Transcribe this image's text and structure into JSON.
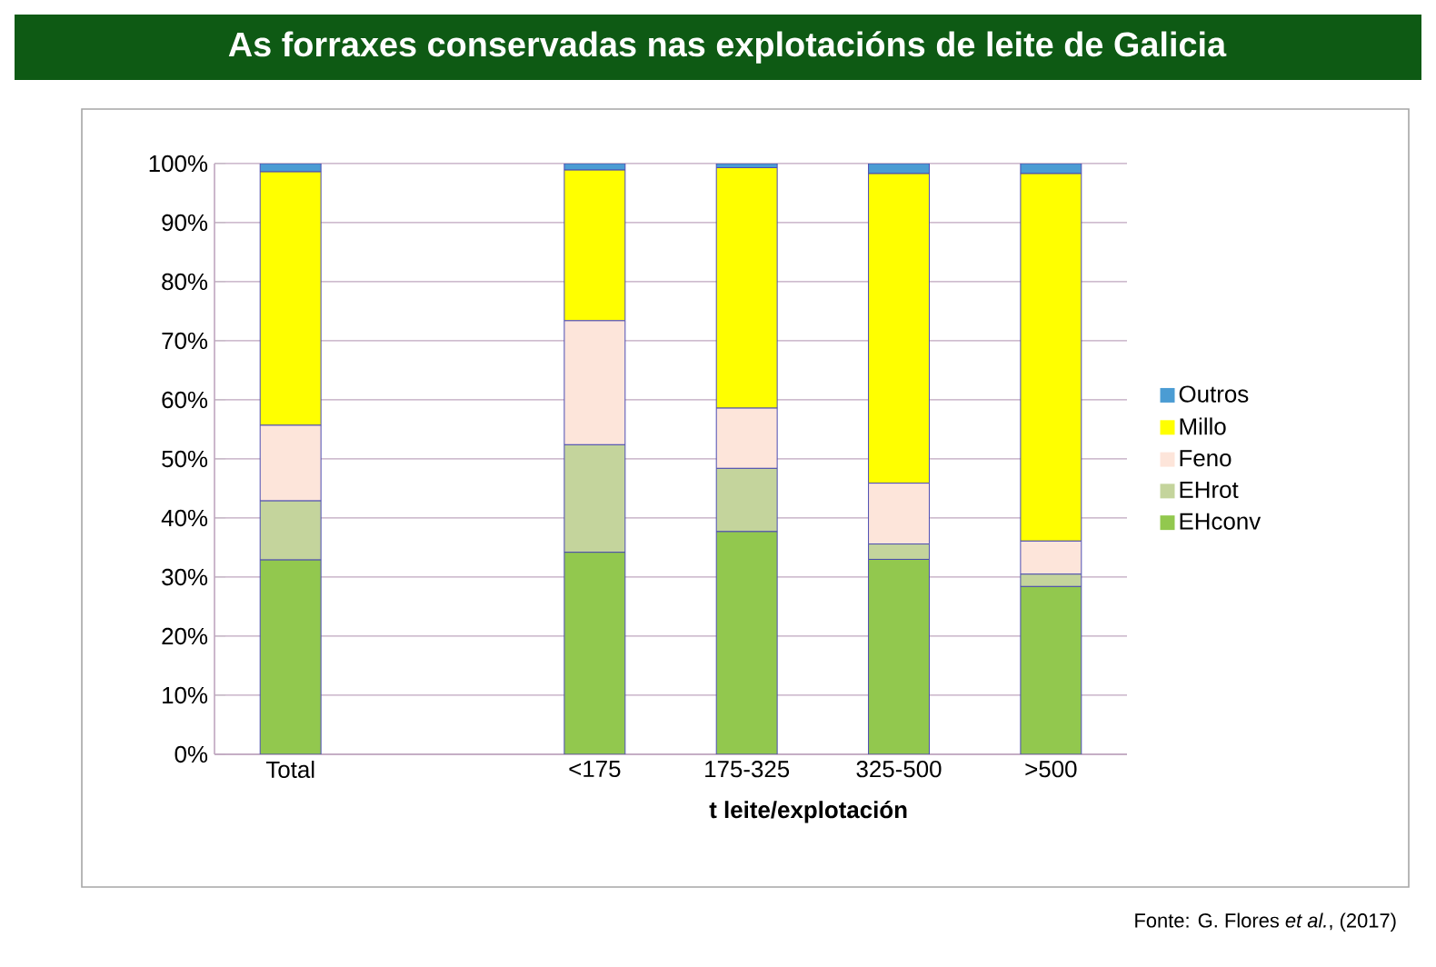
{
  "chart_data": {
    "type": "bar",
    "stacked": true,
    "title": "As forraxes conservadas nas explotacións de leite de Galicia",
    "xlabel": "t leite/explotación",
    "categories": [
      "Total",
      null,
      "<175",
      "175-325",
      "325-500",
      ">500"
    ],
    "series": [
      {
        "name": "EHconv",
        "color": "#92c84e",
        "values": [
          32.9,
          null,
          34.2,
          37.7,
          33.0,
          28.4
        ]
      },
      {
        "name": "EHrot",
        "color": "#c4d49c",
        "values": [
          10.0,
          null,
          18.2,
          10.7,
          2.6,
          2.1
        ]
      },
      {
        "name": "Feno",
        "color": "#fde5da",
        "values": [
          12.8,
          null,
          21.0,
          10.2,
          10.3,
          5.6
        ]
      },
      {
        "name": "Millo",
        "color": "#ffff00",
        "values": [
          42.9,
          null,
          25.5,
          40.7,
          52.4,
          62.2
        ]
      },
      {
        "name": "Outros",
        "color": "#4b9cd3",
        "values": [
          1.4,
          null,
          1.1,
          0.7,
          1.7,
          1.7
        ]
      }
    ],
    "ylim": [
      0,
      100
    ],
    "yticks": [
      {
        "value": 0,
        "label": "0%"
      },
      {
        "value": 10,
        "label": "10%"
      },
      {
        "value": 20,
        "label": "20%"
      },
      {
        "value": 30,
        "label": "30%"
      },
      {
        "value": 40,
        "label": "40%"
      },
      {
        "value": 50,
        "label": "50%"
      },
      {
        "value": 60,
        "label": "60%"
      },
      {
        "value": 70,
        "label": "70%"
      },
      {
        "value": 80,
        "label": "80%"
      },
      {
        "value": 90,
        "label": "90%"
      },
      {
        "value": 100,
        "label": "100%"
      }
    ],
    "grid": "y",
    "legend": "right",
    "annotations": [
      "Fonte: G. Flores *et al.*, (2017)"
    ]
  }
}
